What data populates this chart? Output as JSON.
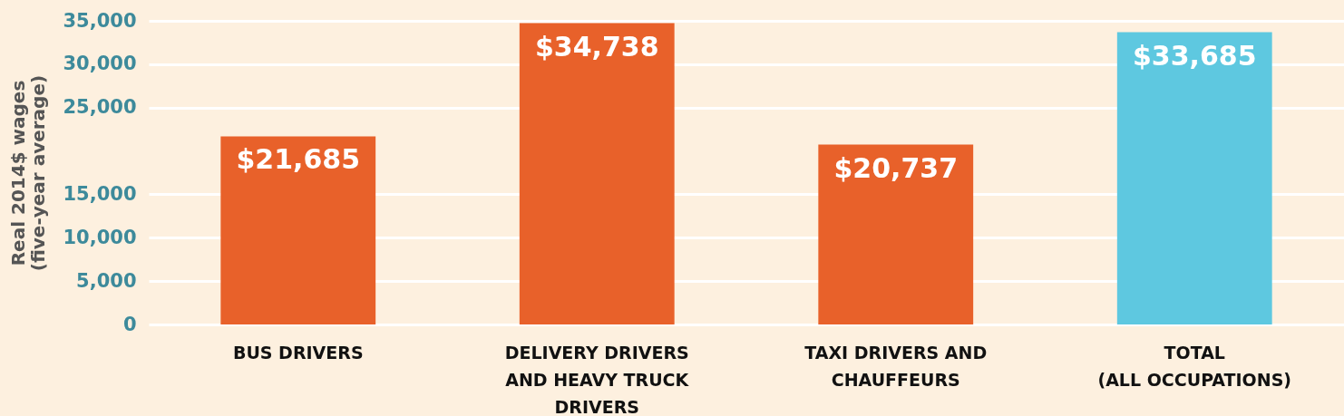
{
  "chart_data": {
    "type": "bar",
    "ylabel": "Real 2014$ wages (five-year average)",
    "categories": [
      "BUS DRIVERS",
      "DELIVERY DRIVERS AND HEAVY TRUCK DRIVERS",
      "TAXI DRIVERS AND CHAUFFEURS",
      "TOTAL (ALL OCCUPATIONS)"
    ],
    "values": [
      21685,
      34738,
      20737,
      33685
    ],
    "colors": [
      "#e8612a",
      "#e8612a",
      "#e8612a",
      "#5ec8e0"
    ],
    "value_labels": [
      "$21,685",
      "$34,738",
      "$20,737",
      "$33,685"
    ],
    "ylim": [
      0,
      35000
    ],
    "yticks": [
      0,
      {
        "value": 5000,
        "label": "5,000"
      },
      {
        "value": 10000,
        "label": "10,000"
      },
      {
        "value": 15000,
        "label": "15,000"
      },
      {
        "value": 25000,
        "label": "25,000"
      },
      {
        "value": 30000,
        "label": "30,000"
      },
      {
        "value": 35000,
        "label": "35,000"
      }
    ],
    "grid": "y"
  }
}
